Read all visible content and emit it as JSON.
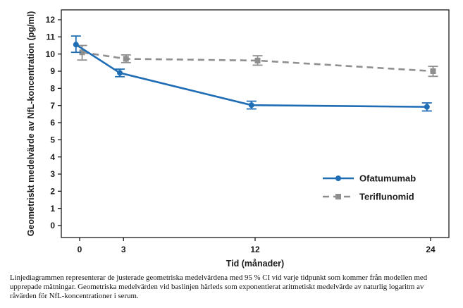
{
  "chart_data": {
    "type": "line",
    "title": "",
    "xlabel": "Tid (månader)",
    "ylabel": "Geometriskt medelvärde av NfL-koncentration (pg/ml)",
    "x": [
      0,
      3,
      12,
      24
    ],
    "x_ticks": [
      0,
      3,
      12,
      24
    ],
    "y_ticks": [
      0,
      1,
      2,
      3,
      4,
      5,
      6,
      7,
      8,
      9,
      10,
      11,
      12
    ],
    "xlim": [
      -1.25,
      25.25
    ],
    "ylim": [
      0,
      12.6
    ],
    "grid": false,
    "error_bars": "95% CI",
    "legend_position": "inside-bottom-right",
    "series": [
      {
        "name": "Ofatumumab",
        "color": "#1f6db4",
        "line_style": "solid",
        "marker": "circle",
        "x_offset_months": -0.25,
        "values": [
          10.55,
          8.9,
          7.02,
          6.92
        ],
        "ci_low": [
          10.1,
          8.68,
          6.8,
          6.68
        ],
        "ci_high": [
          11.05,
          9.12,
          7.25,
          7.15
        ]
      },
      {
        "name": "Teriflunomid",
        "color": "#8f8f8f",
        "line_style": "dashed",
        "marker": "square",
        "x_offset_months": 0.17,
        "values": [
          10.1,
          9.72,
          9.62,
          9.0
        ],
        "ci_low": [
          9.65,
          9.5,
          9.35,
          8.7
        ],
        "ci_high": [
          10.5,
          9.95,
          9.9,
          9.28
        ]
      }
    ]
  },
  "footnote": {
    "lines": [
      "Linjediagrammen representerar de justerade geometriska medelvärdena med 95 % CI vid varje tidpunkt som kommer från modellen med",
      "upprepade mätningar. Geometriska medelvärden vid baslinjen härleds som exponentierat aritmetiskt medelvärde av naturlig logaritm av",
      "råvärden för NfL-koncentrationer i serum."
    ]
  }
}
